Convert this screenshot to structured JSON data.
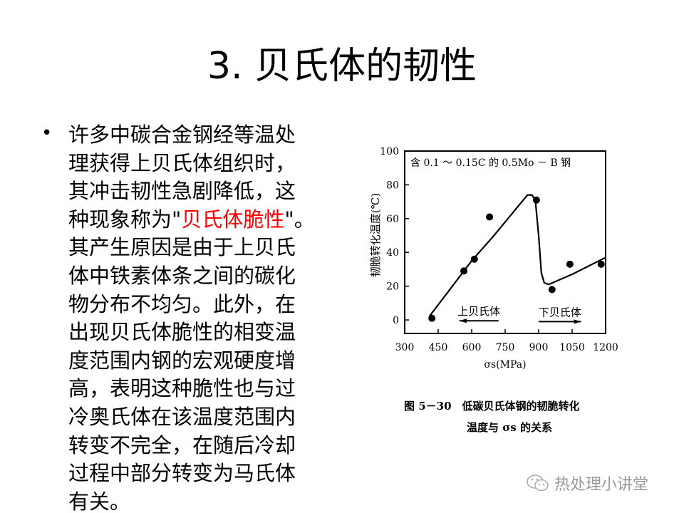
{
  "title": "3. 贝氏体的韧性",
  "bullet_char": "•",
  "body": {
    "lines": [
      "许多中碳合金钢经等温处",
      "理获得上贝氏体组织时，",
      "其冲击韧性急剧降低，这"
    ],
    "line4_pre": "种现象称为\"",
    "line4_red": "贝氏体脆性",
    "line4_post": "\"。",
    "lines_after": [
      "其产生原因是由于上贝氏",
      "体中铁素体条之间的碳化",
      "物分布不均匀。此外，在",
      "出现贝氏体脆性的相变温",
      "度范围内钢的宏观硬度增",
      "高，表明这种脆性也与过",
      "冷奥氏体在该温度范围内",
      "转变不完全，在随后冷却",
      "过程中部分转变为马氏体",
      "有关。"
    ],
    "highlight_color": "#ff0000"
  },
  "chart_data": {
    "type": "scatter",
    "title": "含 0.1 ～ 0.15C 的 0.5Mo － B 钢",
    "xlabel": "σs(MPa)",
    "ylabel": "韧脆转化温度(℃)",
    "xlim": [
      300,
      1200
    ],
    "ylim": [
      -8,
      100
    ],
    "xticks": [
      "300",
      "450",
      "600",
      "750",
      "900",
      "1050",
      "1200"
    ],
    "yticks": [
      "0",
      "20",
      "40",
      "60",
      "80",
      "100"
    ],
    "grid": false,
    "points": {
      "x": [
        422,
        565,
        612,
        680,
        890,
        960,
        1040,
        1180
      ],
      "y": [
        1,
        29,
        36,
        61,
        71,
        18,
        33,
        33
      ]
    },
    "trend_line": {
      "x": [
        410,
        600,
        700,
        800,
        850,
        870,
        885,
        900,
        912,
        925,
        945,
        1050,
        1200
      ],
      "y": [
        2,
        35,
        50,
        66,
        74,
        74,
        71,
        50,
        28,
        22,
        21,
        27,
        37
      ]
    },
    "annotations": [
      {
        "text": "上贝氏体",
        "arrow": "left",
        "x": [
          545,
          720
        ],
        "y": -0.5
      },
      {
        "text": "下贝氏体",
        "arrow": "right",
        "x": [
          900,
          1090
        ],
        "y": -1
      }
    ]
  },
  "caption": {
    "line1": "图 5－30　低碳贝氏体钢的韧脆转化",
    "line2": "温度与 σs 的关系"
  },
  "watermark": {
    "text": "热处理小讲堂",
    "icon": "wechat-icon"
  }
}
